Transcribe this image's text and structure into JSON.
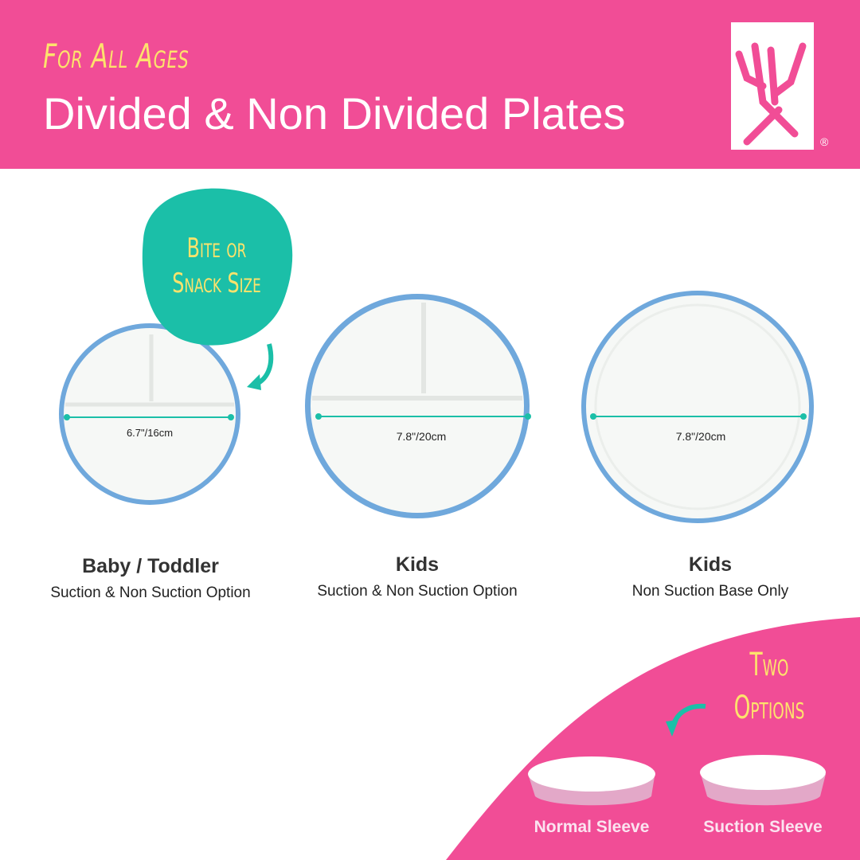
{
  "header": {
    "kicker": "For All Ages",
    "title": "Divided & Non Divided Plates",
    "registered_mark": "®"
  },
  "badge": {
    "line1": "Bite or",
    "line2": "Snack Size"
  },
  "plates": [
    {
      "size": "6.7\"/16cm",
      "name": "Baby / Toddler",
      "option": "Suction & Non Suction Option",
      "divided": true
    },
    {
      "size": "7.8\"/20cm",
      "name": "Kids",
      "option": "Suction & Non Suction Option",
      "divided": true
    },
    {
      "size": "7.8\"/20cm",
      "name": "Kids",
      "option": "Non Suction Base Only",
      "divided": false
    }
  ],
  "options": {
    "line1": "Two",
    "line2": "Options",
    "sleeves": [
      "Normal Sleeve",
      "Suction Sleeve"
    ]
  },
  "colors": {
    "brand_pink": "#f14d96",
    "accent_teal": "#1bbfa8",
    "accent_yellow": "#fde36c",
    "plate_rim": "#6fa8dc"
  }
}
